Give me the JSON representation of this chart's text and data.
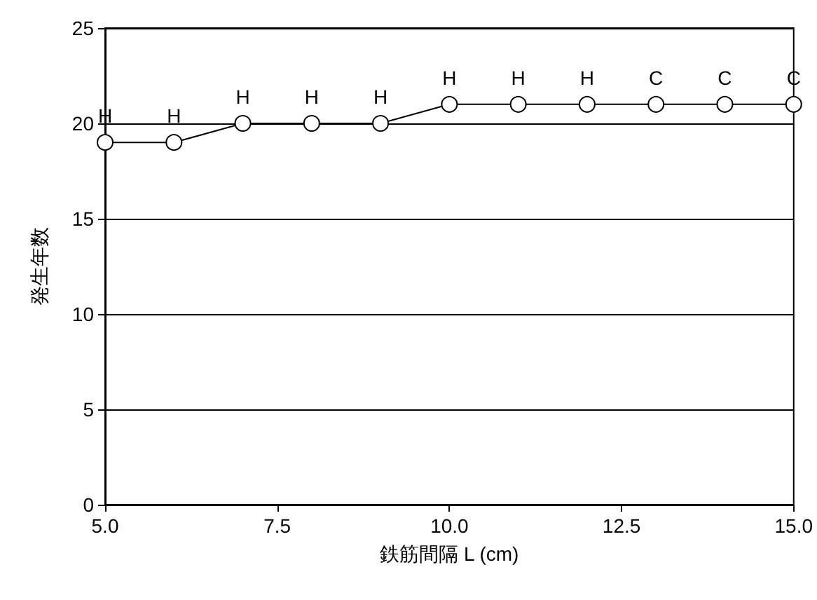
{
  "chart_data": {
    "type": "line",
    "xlabel": "鉄筋間隔 L (cm)",
    "ylabel": "発生年数",
    "x": [
      5,
      6,
      7,
      8,
      9,
      10,
      11,
      12,
      13,
      14,
      15
    ],
    "series": [
      {
        "color": "#000000",
        "values": [
          19,
          19,
          20,
          20,
          20,
          21,
          21,
          21,
          21,
          21,
          21
        ],
        "value_labels": [
          "H",
          "H",
          "H",
          "H",
          "H",
          "H",
          "H",
          "H",
          "C",
          "C",
          "C"
        ]
      }
    ],
    "xlim": [
      5,
      15
    ],
    "xticks": [
      {
        "value": 5,
        "label": "5.0"
      },
      {
        "value": 7.5,
        "label": "7.5"
      },
      {
        "value": 10,
        "label": "10.0"
      },
      {
        "value": 12.5,
        "label": "12.5"
      },
      {
        "value": 15,
        "label": "15.0"
      }
    ],
    "ylim": [
      0,
      25
    ],
    "yticks": [
      0,
      5,
      10,
      15,
      20,
      25
    ],
    "grid": "y",
    "marker": "circle",
    "line_style": "solid"
  }
}
